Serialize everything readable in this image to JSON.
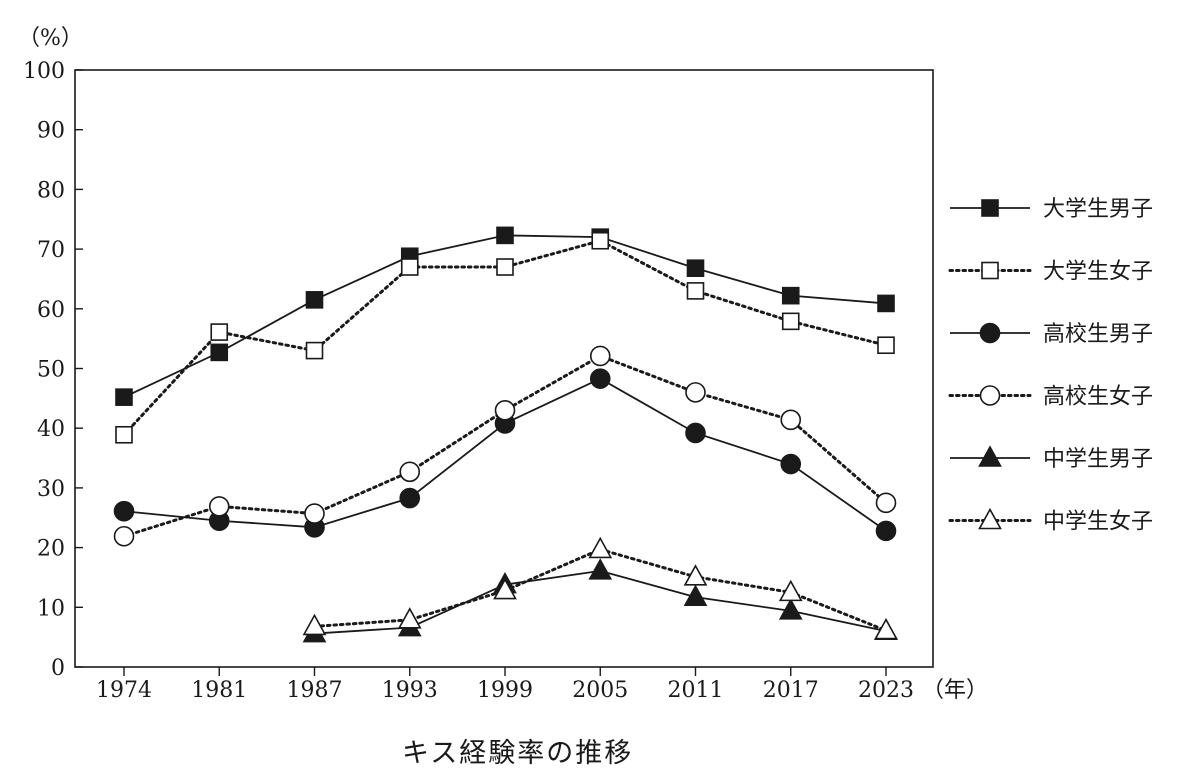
{
  "chart_data": {
    "type": "line",
    "title": "キス経験率の推移",
    "ylabel": "（%）",
    "xlabel": "（年）",
    "categories": [
      "1974",
      "1981",
      "1987",
      "1993",
      "1999",
      "2005",
      "2011",
      "2017",
      "2023"
    ],
    "ylim": [
      0,
      100
    ],
    "yticks": [
      0,
      10,
      20,
      30,
      40,
      50,
      60,
      70,
      80,
      90,
      100
    ],
    "legend_position": "right",
    "series": [
      {
        "name": "大学生男子",
        "marker": "square",
        "filled": true,
        "dashed": false,
        "values": [
          45.2,
          52.7,
          61.5,
          68.8,
          72.3,
          72.0,
          66.8,
          62.2,
          60.9
        ]
      },
      {
        "name": "大学生女子",
        "marker": "square",
        "filled": false,
        "dashed": true,
        "values": [
          38.9,
          56.1,
          53.0,
          67.0,
          67.0,
          71.4,
          63.0,
          57.9,
          53.9
        ]
      },
      {
        "name": "高校生男子",
        "marker": "circle",
        "filled": true,
        "dashed": false,
        "values": [
          26.1,
          24.5,
          23.4,
          28.3,
          40.8,
          48.3,
          39.2,
          34.0,
          22.8
        ]
      },
      {
        "name": "高校生女子",
        "marker": "circle",
        "filled": false,
        "dashed": true,
        "values": [
          21.9,
          26.9,
          25.7,
          32.7,
          43.0,
          52.1,
          46.0,
          41.4,
          27.5
        ]
      },
      {
        "name": "中学生男子",
        "marker": "triangle",
        "filled": true,
        "dashed": false,
        "values": [
          null,
          null,
          5.6,
          6.6,
          13.8,
          16.1,
          11.7,
          9.4,
          6.0
        ]
      },
      {
        "name": "中学生女子",
        "marker": "triangle",
        "filled": false,
        "dashed": true,
        "values": [
          null,
          null,
          6.8,
          7.9,
          12.8,
          19.7,
          15.1,
          12.5,
          6.1
        ]
      }
    ]
  }
}
